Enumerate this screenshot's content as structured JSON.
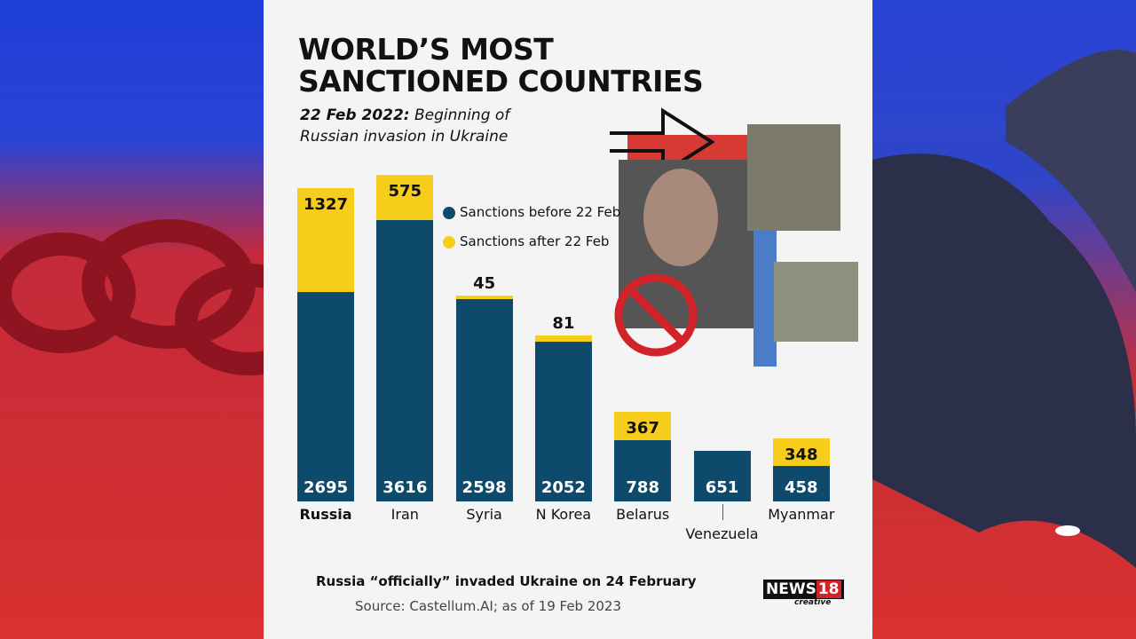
{
  "chart_data": {
    "type": "stacked-bar",
    "title": "WORLD’S MOST SANCTIONED COUNTRIES",
    "subtitle_date": "22 Feb 2022:",
    "subtitle": "Beginning of Russian invasion in Ukraine",
    "categories": [
      "Russia",
      "Iran",
      "Syria",
      "N Korea",
      "Belarus",
      "Venezuela",
      "Myanmar"
    ],
    "series": [
      {
        "name": "Sanctions before 22 Feb",
        "color": "#0d4a6c",
        "values": [
          2695,
          3616,
          2598,
          2052,
          788,
          651,
          458
        ]
      },
      {
        "name": "Sanctions after 22 Feb",
        "color": "#f6cd1a",
        "values": [
          1327,
          575,
          45,
          81,
          367,
          null,
          348
        ]
      }
    ],
    "note": "Russia “officially” invaded Ukraine on 24 February",
    "source": "Source: Castellum.AI; as of 19 Feb 2023",
    "logo": [
      "NEWS",
      "18",
      "creative"
    ]
  }
}
